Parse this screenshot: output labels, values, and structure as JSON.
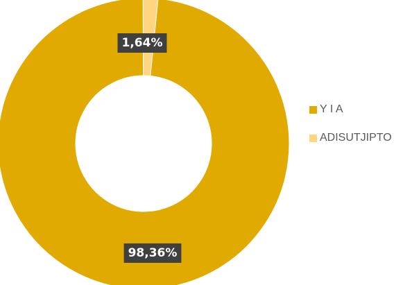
{
  "chart_data": {
    "type": "pie",
    "donut": true,
    "slices": [
      {
        "label": "Y I A",
        "value": 98.36,
        "display": "98,36%",
        "color": "#E0AA00"
      },
      {
        "label": "ADISUTJIPTO",
        "value": 1.64,
        "display": "1,64%",
        "color": "#FFD580"
      }
    ],
    "legend": {
      "position": "right",
      "items": [
        "Y I A",
        "ADISUTJIPTO"
      ]
    },
    "label_style": {
      "box_color": "#404040",
      "text_color": "#FFFFFF"
    }
  }
}
